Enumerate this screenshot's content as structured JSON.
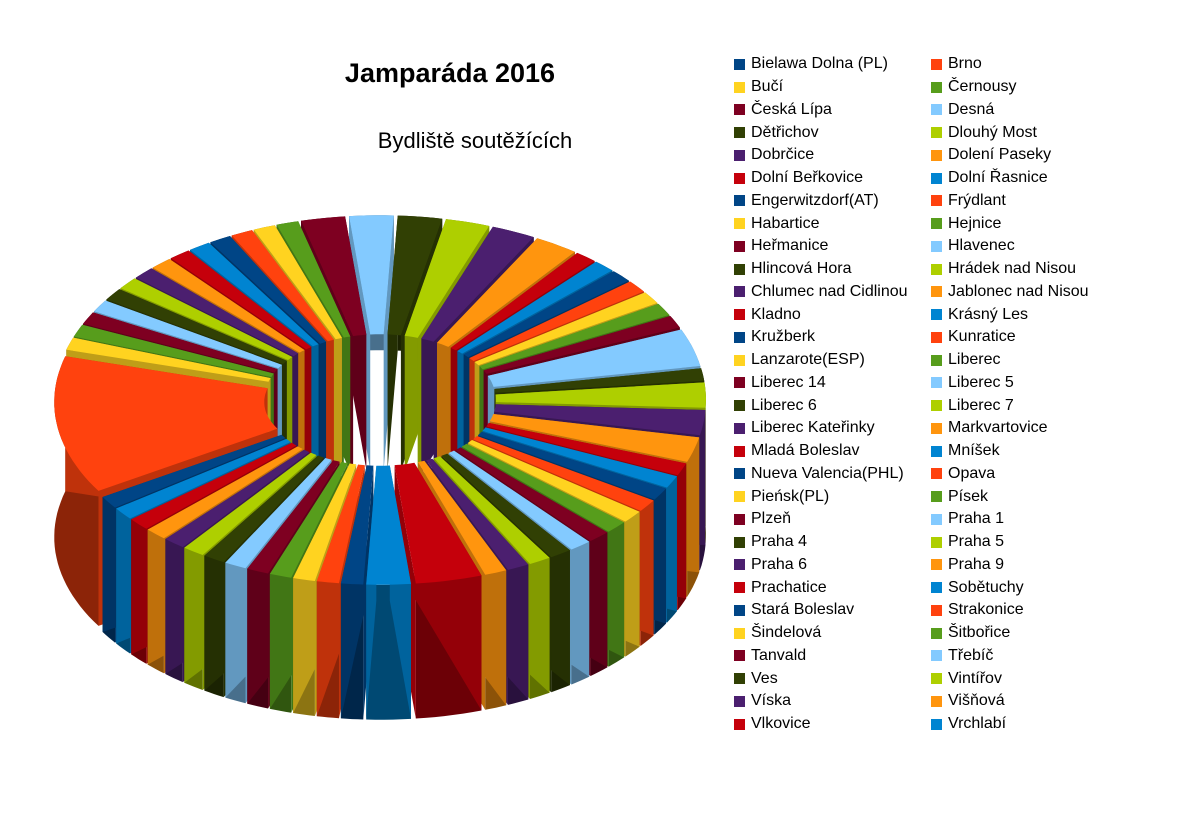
{
  "title": "Jamparáda 2016",
  "subtitle": "Bydliště soutěžících",
  "chart_data": {
    "type": "pie",
    "style": "3d-exploded",
    "legend_position": "right",
    "series": [
      {
        "name": "",
        "slices": [
          {
            "label": "Bielawa Dolna (PL)",
            "value": 1,
            "color": "#004586"
          },
          {
            "label": "Brno",
            "value": 1,
            "color": "#ff420e"
          },
          {
            "label": "Bučí",
            "value": 1,
            "color": "#ffd320"
          },
          {
            "label": "Černousy",
            "value": 1,
            "color": "#579d1c"
          },
          {
            "label": "Česká Lípa",
            "value": 2,
            "color": "#7e0021"
          },
          {
            "label": "Desná",
            "value": 2,
            "color": "#83caff"
          },
          {
            "label": "Dětřichov",
            "value": 2,
            "color": "#314004"
          },
          {
            "label": "Dlouhý Most",
            "value": 2,
            "color": "#aecf00"
          },
          {
            "label": "Dobrčice",
            "value": 2,
            "color": "#4b1f6f"
          },
          {
            "label": "Dolení Paseky",
            "value": 2,
            "color": "#ff950e"
          },
          {
            "label": "Dolní Beřkovice",
            "value": 1,
            "color": "#c5000b"
          },
          {
            "label": "Dolní Řasnice",
            "value": 1,
            "color": "#0084d1"
          },
          {
            "label": "Engerwitzdorf(AT)",
            "value": 1,
            "color": "#004586"
          },
          {
            "label": "Frýdlant",
            "value": 1,
            "color": "#ff420e"
          },
          {
            "label": "Habartice",
            "value": 1,
            "color": "#ffd320"
          },
          {
            "label": "Hejnice",
            "value": 1,
            "color": "#579d1c"
          },
          {
            "label": "Heřmanice",
            "value": 1,
            "color": "#7e0021"
          },
          {
            "label": "Hlavenec",
            "value": 3,
            "color": "#83caff"
          },
          {
            "label": "Hlincová Hora",
            "value": 1,
            "color": "#314004"
          },
          {
            "label": "Hrádek nad Nisou",
            "value": 2,
            "color": "#aecf00"
          },
          {
            "label": "Chlumec nad Cidlinou",
            "value": 2,
            "color": "#4b1f6f"
          },
          {
            "label": "Jablonec nad Nisou",
            "value": 2,
            "color": "#ff950e"
          },
          {
            "label": "Kladno",
            "value": 1,
            "color": "#c5000b"
          },
          {
            "label": "Krásný Les",
            "value": 1,
            "color": "#0084d1"
          },
          {
            "label": "Kružberk",
            "value": 1,
            "color": "#004586"
          },
          {
            "label": "Kunratice",
            "value": 1,
            "color": "#ff420e"
          },
          {
            "label": "Lanzarote(ESP)",
            "value": 1,
            "color": "#ffd320"
          },
          {
            "label": "Liberec",
            "value": 1,
            "color": "#579d1c"
          },
          {
            "label": "Liberec 14",
            "value": 1,
            "color": "#7e0021"
          },
          {
            "label": "Liberec 5",
            "value": 1,
            "color": "#83caff"
          },
          {
            "label": "Liberec 6",
            "value": 1,
            "color": "#314004"
          },
          {
            "label": "Liberec 7",
            "value": 1,
            "color": "#aecf00"
          },
          {
            "label": "Liberec Kateřinky",
            "value": 1,
            "color": "#4b1f6f"
          },
          {
            "label": "Markvartovice",
            "value": 1,
            "color": "#ff950e"
          },
          {
            "label": "Mladá Boleslav",
            "value": 3,
            "color": "#c5000b"
          },
          {
            "label": "Mníšek",
            "value": 2,
            "color": "#0084d1"
          },
          {
            "label": "Nueva Valencia(PHL)",
            "value": 1,
            "color": "#004586"
          },
          {
            "label": "Opava",
            "value": 1,
            "color": "#ff420e"
          },
          {
            "label": "Pieńsk(PL)",
            "value": 1,
            "color": "#ffd320"
          },
          {
            "label": "Písek",
            "value": 1,
            "color": "#579d1c"
          },
          {
            "label": "Plzeň",
            "value": 1,
            "color": "#7e0021"
          },
          {
            "label": "Praha 1",
            "value": 1,
            "color": "#83caff"
          },
          {
            "label": "Praha 4",
            "value": 1,
            "color": "#314004"
          },
          {
            "label": "Praha 5",
            "value": 1,
            "color": "#aecf00"
          },
          {
            "label": "Praha 6",
            "value": 1,
            "color": "#4b1f6f"
          },
          {
            "label": "Praha 9",
            "value": 1,
            "color": "#ff950e"
          },
          {
            "label": "Prachatice",
            "value": 1,
            "color": "#c5000b"
          },
          {
            "label": "Sobětuchy",
            "value": 1,
            "color": "#0084d1"
          },
          {
            "label": "Stará Boleslav",
            "value": 1,
            "color": "#004586"
          },
          {
            "label": "Strakonice",
            "value": 11,
            "color": "#ff420e"
          },
          {
            "label": "Šindelová",
            "value": 1,
            "color": "#ffd320"
          },
          {
            "label": "Šitbořice",
            "value": 1,
            "color": "#579d1c"
          },
          {
            "label": "Tanvald",
            "value": 1,
            "color": "#7e0021"
          },
          {
            "label": "Třebíč",
            "value": 1,
            "color": "#83caff"
          },
          {
            "label": "Ves",
            "value": 1,
            "color": "#314004"
          },
          {
            "label": "Vintířov",
            "value": 1,
            "color": "#aecf00"
          },
          {
            "label": "Víska",
            "value": 1,
            "color": "#4b1f6f"
          },
          {
            "label": "Višňová",
            "value": 1,
            "color": "#ff950e"
          },
          {
            "label": "Vlkovice",
            "value": 1,
            "color": "#c5000b"
          },
          {
            "label": "Vrchlabí",
            "value": 1,
            "color": "#0084d1"
          }
        ]
      }
    ]
  }
}
